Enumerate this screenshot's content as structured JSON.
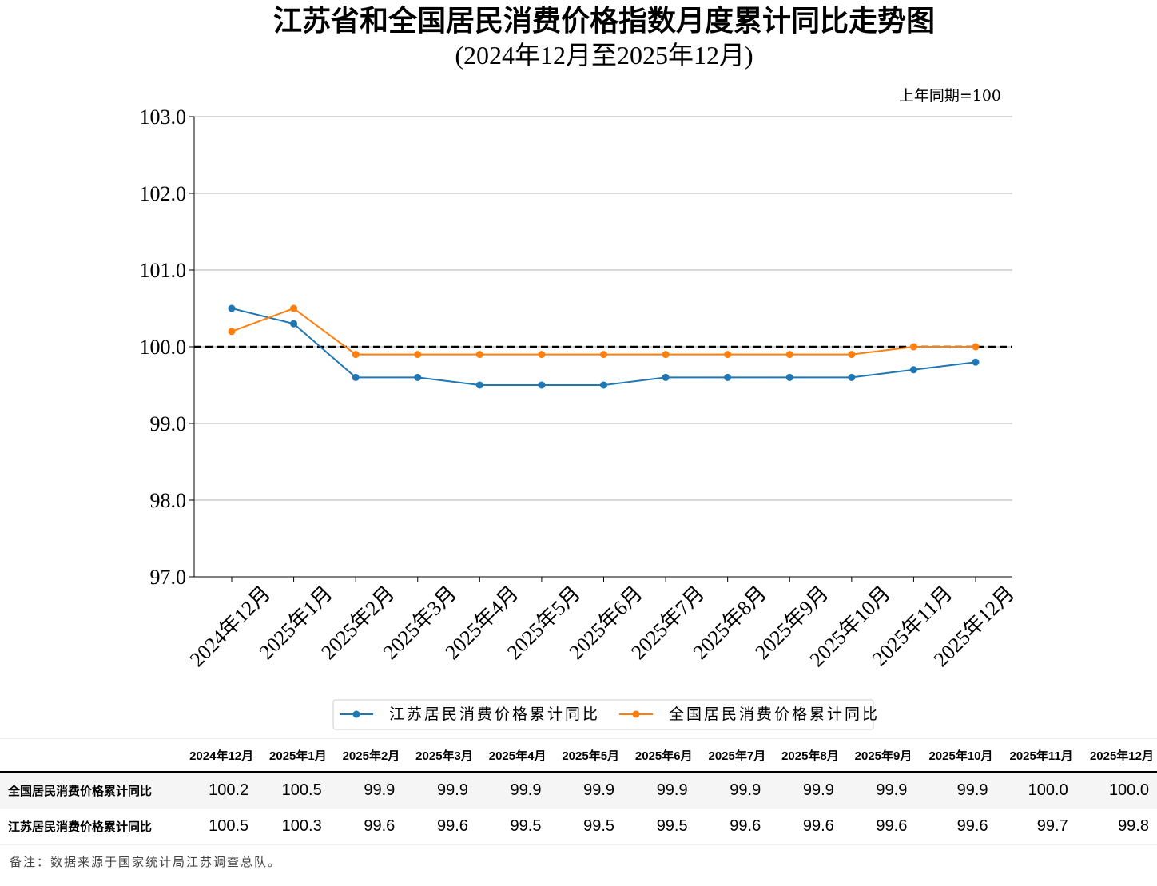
{
  "chart_data": {
    "type": "line",
    "title": "江苏省和全国居民消费价格指数月度累计同比走势图",
    "subtitle": "(2024年12月至2025年12月)",
    "unit_note": "上年同期=100",
    "categories": [
      "2024年12月",
      "2025年1月",
      "2025年2月",
      "2025年3月",
      "2025年4月",
      "2025年5月",
      "2025年6月",
      "2025年7月",
      "2025年8月",
      "2025年9月",
      "2025年10月",
      "2025年11月",
      "2025年12月"
    ],
    "series": [
      {
        "name": "江苏居民消费价格累计同比",
        "color": "#1f77b4",
        "values": [
          100.5,
          100.3,
          99.6,
          99.6,
          99.5,
          99.5,
          99.5,
          99.6,
          99.6,
          99.6,
          99.6,
          99.7,
          99.8
        ]
      },
      {
        "name": "全国居民消费价格累计同比",
        "color": "#ff7f0e",
        "values": [
          100.2,
          100.5,
          99.9,
          99.9,
          99.9,
          99.9,
          99.9,
          99.9,
          99.9,
          99.9,
          99.9,
          100.0,
          100.0
        ]
      }
    ],
    "ylim": [
      97.0,
      103.0
    ],
    "yticks": [
      "97.0",
      "98.0",
      "99.0",
      "100.0",
      "101.0",
      "102.0",
      "103.0"
    ],
    "reference_line": 100.0,
    "grid": "horizontal",
    "legend": "bottom"
  },
  "table": {
    "headers": [
      "2024年12月",
      "2025年1月",
      "2025年2月",
      "2025年3月",
      "2025年4月",
      "2025年5月",
      "2025年6月",
      "2025年7月",
      "2025年8月",
      "2025年9月",
      "2025年10月",
      "2025年11月",
      "2025年12月"
    ],
    "rows": [
      {
        "label": "全国居民消费价格累计同比",
        "values": [
          "100.2",
          "100.5",
          "99.9",
          "99.9",
          "99.9",
          "99.9",
          "99.9",
          "99.9",
          "99.9",
          "99.9",
          "99.9",
          "100.0",
          "100.0"
        ]
      },
      {
        "label": "江苏居民消费价格累计同比",
        "values": [
          "100.5",
          "100.3",
          "99.6",
          "99.6",
          "99.5",
          "99.5",
          "99.5",
          "99.6",
          "99.6",
          "99.6",
          "99.6",
          "99.7",
          "99.8"
        ]
      }
    ]
  },
  "note": "备注：数据来源于国家统计局江苏调查总队。"
}
